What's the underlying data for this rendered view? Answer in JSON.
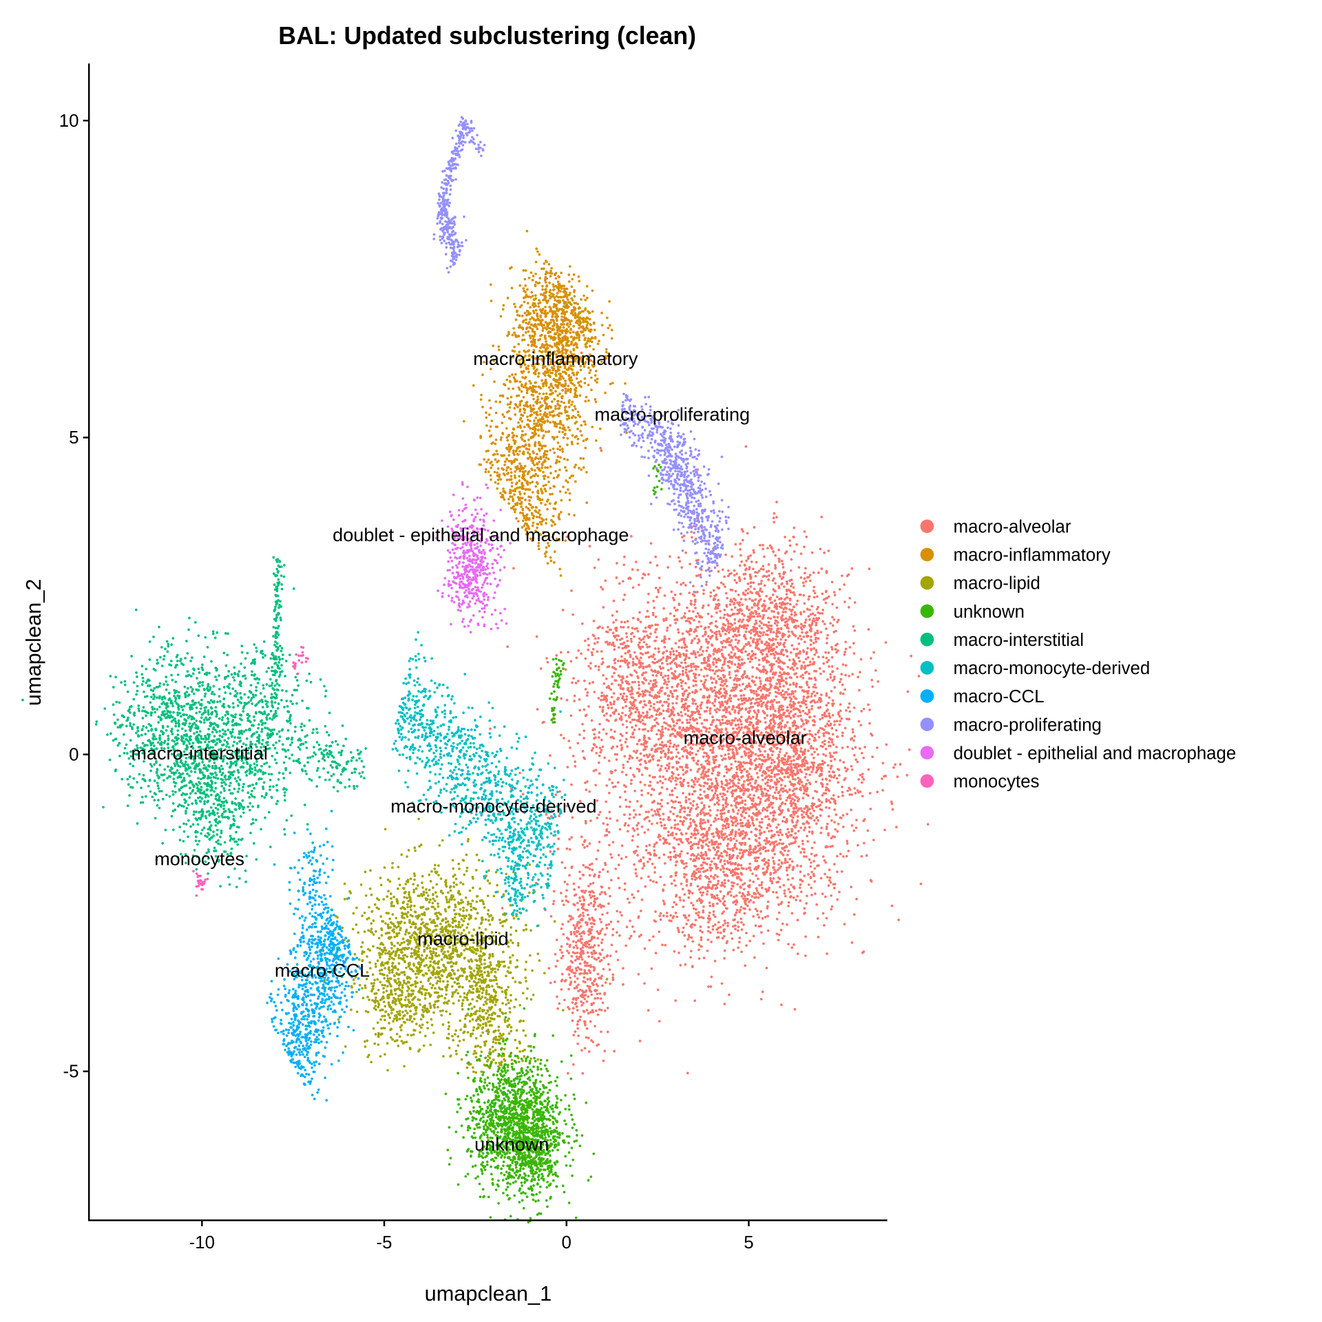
{
  "chart_data": {
    "type": "scatter",
    "title": "BAL: Updated subclustering (clean)",
    "xlabel": "umapclean_1",
    "ylabel": "umapclean_2",
    "xlim": [
      -13.1,
      8.8
    ],
    "ylim": [
      -7.35,
      10.9
    ],
    "xticks": [
      -10,
      -5,
      0,
      5
    ],
    "yticks": [
      -5,
      0,
      5,
      10
    ],
    "xtick_labels": [
      "-10",
      "-5",
      "0",
      "5"
    ],
    "ytick_labels": [
      "-5",
      "0",
      "5",
      "10"
    ],
    "grid": false,
    "legend_position": "right",
    "series": [
      {
        "name": "macro-alveolar",
        "color": "#F8766D",
        "label_at": [
          4.9,
          0.27
        ],
        "parts": [
          {
            "kind": "blob",
            "c": [
              4.3,
              0.2
            ],
            "s": [
              1.7,
              1.3
            ],
            "n": 3200
          },
          {
            "kind": "blob",
            "c": [
              5.6,
              2.1
            ],
            "s": [
              0.9,
              0.6
            ],
            "n": 700
          },
          {
            "kind": "blob",
            "c": [
              6.2,
              -0.3
            ],
            "s": [
              0.9,
              1.1
            ],
            "n": 900
          },
          {
            "kind": "blob",
            "c": [
              4.2,
              -1.9
            ],
            "s": [
              0.9,
              0.6
            ],
            "n": 600
          },
          {
            "kind": "blob",
            "c": [
              1.9,
              1.2
            ],
            "s": [
              0.8,
              0.7
            ],
            "n": 500
          },
          {
            "kind": "blob",
            "c": [
              0.5,
              -3.1
            ],
            "s": [
              0.35,
              0.7
            ],
            "n": 450
          },
          {
            "kind": "blob",
            "c": [
              1.5,
              -1.5
            ],
            "s": [
              1.2,
              1.4
            ],
            "n": 120
          }
        ]
      },
      {
        "name": "macro-inflammatory",
        "color": "#D89000",
        "label_at": [
          -0.3,
          6.25
        ],
        "parts": [
          {
            "kind": "line",
            "from": [
              0.2,
              7.2
            ],
            "to": [
              -1.5,
              3.8
            ],
            "w": 0.55,
            "n": 1500
          },
          {
            "kind": "blob",
            "c": [
              -0.3,
              6.8
            ],
            "s": [
              0.6,
              0.4
            ],
            "n": 400
          }
        ]
      },
      {
        "name": "macro-lipid",
        "color": "#A3A500",
        "label_at": [
          -2.84,
          -2.9
        ],
        "parts": [
          {
            "kind": "blob",
            "c": [
              -3.6,
              -3.0
            ],
            "s": [
              1.1,
              0.6
            ],
            "n": 1300
          },
          {
            "kind": "line",
            "from": [
              -2.2,
              -3.3
            ],
            "to": [
              -2.1,
              -5.0
            ],
            "w": 0.45,
            "n": 350
          },
          {
            "kind": "blob",
            "c": [
              -4.6,
              -3.9
            ],
            "s": [
              0.5,
              0.4
            ],
            "n": 250
          }
        ]
      },
      {
        "name": "unknown",
        "color": "#39B600",
        "label_at": [
          -1.5,
          -6.14
        ],
        "parts": [
          {
            "kind": "blob",
            "c": [
              -1.4,
              -5.8
            ],
            "s": [
              0.65,
              0.5
            ],
            "n": 1300
          },
          {
            "kind": "blob",
            "c": [
              -0.9,
              -6.4
            ],
            "s": [
              0.35,
              0.35
            ],
            "n": 300
          },
          {
            "kind": "line",
            "from": [
              -0.2,
              1.5
            ],
            "to": [
              -0.4,
              0.5
            ],
            "w": 0.06,
            "n": 50
          },
          {
            "kind": "line",
            "from": [
              2.5,
              4.6
            ],
            "to": [
              2.5,
              4.1
            ],
            "w": 0.05,
            "n": 15
          }
        ]
      },
      {
        "name": "macro-interstitial",
        "color": "#00BF7D",
        "label_at": [
          -10.07,
          0.03
        ],
        "parts": [
          {
            "kind": "blob",
            "c": [
              -10.6,
              0.4
            ],
            "s": [
              0.9,
              0.6
            ],
            "n": 900
          },
          {
            "kind": "blob",
            "c": [
              -8.6,
              0.3
            ],
            "s": [
              0.8,
              0.7
            ],
            "n": 600
          },
          {
            "kind": "blob",
            "c": [
              -9.7,
              -0.8
            ],
            "s": [
              0.5,
              0.5
            ],
            "n": 300
          },
          {
            "kind": "line",
            "from": [
              -7.9,
              3.1
            ],
            "to": [
              -8.0,
              0.8
            ],
            "w": 0.06,
            "n": 120
          },
          {
            "kind": "line",
            "from": [
              -7.4,
              0.0
            ],
            "to": [
              -5.5,
              -0.2
            ],
            "w": 0.12,
            "n": 120
          }
        ]
      },
      {
        "name": "macro-monocyte-derived",
        "color": "#00BFC4",
        "label_at": [
          -2.0,
          -0.81
        ],
        "parts": [
          {
            "kind": "line",
            "from": [
              -4.6,
              0.75
            ],
            "to": [
              -0.3,
              -1.5
            ],
            "w": 0.3,
            "n": 1000
          },
          {
            "kind": "line",
            "from": [
              -1.5,
              -1.2
            ],
            "to": [
              -1.3,
              -2.6
            ],
            "w": 0.15,
            "n": 120
          }
        ]
      },
      {
        "name": "macro-CCL",
        "color": "#00B0F6",
        "label_at": [
          -6.7,
          -3.4
        ],
        "parts": [
          {
            "kind": "line",
            "from": [
              -6.2,
              -2.7
            ],
            "to": [
              -7.6,
              -4.8
            ],
            "w": 0.35,
            "n": 850
          },
          {
            "kind": "blob",
            "c": [
              -7.0,
              -1.9
            ],
            "s": [
              0.4,
              0.4
            ],
            "n": 100
          }
        ]
      },
      {
        "name": "macro-proliferating",
        "color": "#9590FF",
        "label_at": [
          2.9,
          5.37
        ],
        "parts": [
          {
            "kind": "line",
            "from": [
              -2.8,
              10.0
            ],
            "to": [
              -3.45,
              8.6
            ],
            "w": 0.06,
            "n": 160
          },
          {
            "kind": "line",
            "from": [
              -3.45,
              8.6
            ],
            "to": [
              -3.0,
              7.8
            ],
            "w": 0.12,
            "n": 160
          },
          {
            "kind": "line",
            "from": [
              -2.8,
              9.95
            ],
            "to": [
              -2.3,
              9.5
            ],
            "w": 0.05,
            "n": 40
          },
          {
            "kind": "line",
            "from": [
              1.5,
              5.4
            ],
            "to": [
              2.6,
              5.0
            ],
            "w": 0.12,
            "n": 150
          },
          {
            "kind": "line",
            "from": [
              2.6,
              5.0
            ],
            "to": [
              4.2,
              3.1
            ],
            "w": 0.22,
            "n": 550
          }
        ]
      },
      {
        "name": "doublet - epithelial and macrophage",
        "color": "#E76BF3",
        "label_at": [
          -2.35,
          3.47
        ],
        "parts": [
          {
            "kind": "blob",
            "c": [
              -2.6,
              3.0
            ],
            "s": [
              0.35,
              0.45
            ],
            "n": 450
          }
        ]
      },
      {
        "name": "monocytes",
        "color": "#FF62BC",
        "label_at": [
          -10.07,
          -1.64
        ],
        "parts": [
          {
            "kind": "blob",
            "c": [
              -10.0,
              -2.0
            ],
            "s": [
              0.08,
              0.08
            ],
            "n": 25
          },
          {
            "kind": "line",
            "from": [
              -7.5,
              1.4
            ],
            "to": [
              -7.1,
              1.55
            ],
            "w": 0.05,
            "n": 20
          }
        ]
      }
    ]
  }
}
